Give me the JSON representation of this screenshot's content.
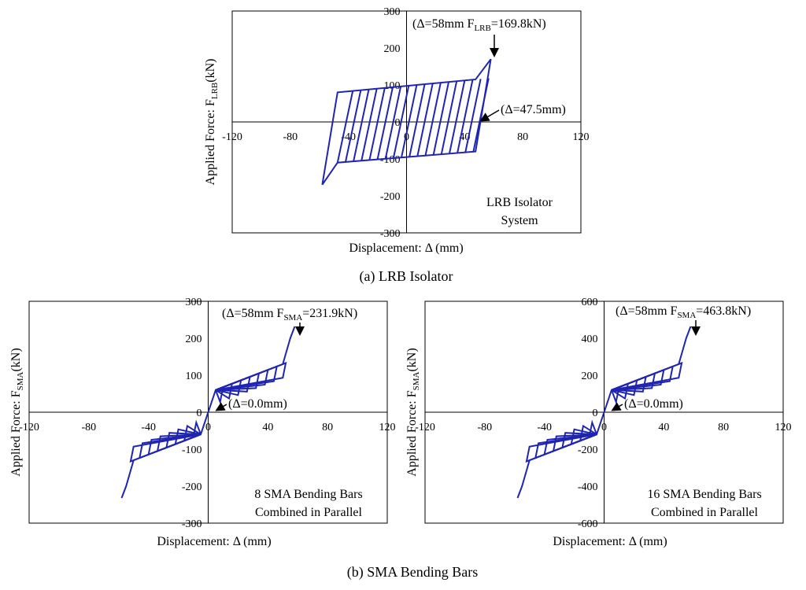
{
  "figure": {
    "caption_a": "(a) LRB Isolator",
    "caption_b": "(b) SMA Bending Bars",
    "line_color": "#1f25b0"
  },
  "chart_data": [
    {
      "id": "lrb",
      "type": "line",
      "title": "LRB Isolator",
      "panel_label": "LRB Isolator System",
      "panel_label_lines": [
        "LRB Isolator",
        "System"
      ],
      "xlabel": "Displacement: Δ (mm)",
      "ylabel_main": "Applied Force: F",
      "ylabel_sub": "LRB",
      "ylabel_end": "(kN)",
      "xlim": [
        -120,
        120
      ],
      "ylim": [
        -300,
        300
      ],
      "xticks": [
        -120,
        -80,
        -40,
        0,
        40,
        80,
        120
      ],
      "yticks": [
        -300,
        -200,
        -100,
        0,
        100,
        200,
        300
      ],
      "series": [
        {
          "name": "LRB hysteresis",
          "points": [
            [
              -58,
              -169.8
            ],
            [
              -47.5,
              -110
            ],
            [
              47.5,
              -80
            ],
            [
              58,
              169.8
            ],
            [
              47.5,
              115
            ],
            [
              -47.5,
              80
            ],
            [
              -58,
              -169.8
            ]
          ],
          "cycle_amplitudes": [
            -47.5,
            -42,
            -36.5,
            -31,
            -25.5,
            -20,
            -14.5,
            -9,
            -3.5,
            2,
            7.5,
            13,
            18.5,
            24,
            29.5,
            35,
            40.5,
            46
          ]
        }
      ],
      "annotations": [
        {
          "text": "(Δ=58mm F",
          "sub": "LRB",
          "tail": "=169.8kN)",
          "x": 58,
          "y": 169.8
        },
        {
          "text": "(Δ=47.5mm)",
          "x": 47.5,
          "y": 0
        }
      ]
    },
    {
      "id": "sma8",
      "type": "line",
      "title": "8 SMA Bending Bars",
      "panel_label": "8 SMA Bending Bars Combined in Parallel",
      "panel_label_lines": [
        "8 SMA Bending Bars",
        "Combined in Parallel"
      ],
      "xlabel": "Displacement: Δ (mm)",
      "ylabel_main": "Applied Force: F",
      "ylabel_sub": "SMA",
      "ylabel_end": "(kN)",
      "xlim": [
        -120,
        120
      ],
      "ylim": [
        -300,
        300
      ],
      "xticks": [
        -120,
        -80,
        -40,
        0,
        40,
        80,
        120
      ],
      "yticks": [
        -300,
        -200,
        -100,
        0,
        100,
        200,
        300
      ],
      "series": [
        {
          "name": "SMA flag-shaped hysteresis",
          "skeleton": [
            [
              -58,
              -231.9
            ],
            [
              -55,
              -200
            ],
            [
              -50,
              -130
            ],
            [
              -5,
              -60
            ],
            [
              5,
              60
            ],
            [
              50,
              130
            ],
            [
              55,
              200
            ],
            [
              58,
              231.9
            ]
          ],
          "loop_amplitudes": [
            10,
            16,
            22,
            28,
            34,
            40,
            46,
            52
          ]
        }
      ],
      "annotations": [
        {
          "text": "(Δ=58mm F",
          "sub": "SMA",
          "tail": "=231.9kN)",
          "x": 58,
          "y": 231.9
        },
        {
          "text": "(Δ=0.0mm)",
          "x": 0,
          "y": 0
        }
      ]
    },
    {
      "id": "sma16",
      "type": "line",
      "title": "16 SMA Bending Bars",
      "panel_label": "16 SMA Bending Bars Combined in Parallel",
      "panel_label_lines": [
        "16 SMA Bending Bars",
        "Combined in Parallel"
      ],
      "xlabel": "Displacement: Δ (mm)",
      "ylabel_main": "Applied Force: F",
      "ylabel_sub": "SMA",
      "ylabel_end": "(kN)",
      "xlim": [
        -120,
        120
      ],
      "ylim": [
        -600,
        600
      ],
      "xticks": [
        -120,
        -80,
        -40,
        0,
        40,
        80,
        120
      ],
      "yticks": [
        -600,
        -400,
        -200,
        0,
        200,
        400,
        600
      ],
      "series": [
        {
          "name": "SMA flag-shaped hysteresis",
          "skeleton": [
            [
              -58,
              -463.8
            ],
            [
              -55,
              -400
            ],
            [
              -50,
              -260
            ],
            [
              -5,
              -120
            ],
            [
              5,
              120
            ],
            [
              50,
              260
            ],
            [
              55,
              400
            ],
            [
              58,
              463.8
            ]
          ],
          "loop_amplitudes": [
            10,
            16,
            22,
            28,
            34,
            40,
            46,
            52
          ]
        }
      ],
      "annotations": [
        {
          "text": "(Δ=58mm F",
          "sub": "SMA",
          "tail": "=463.8kN)",
          "x": 58,
          "y": 463.8
        },
        {
          "text": "(Δ=0.0mm)",
          "x": 0,
          "y": 0
        }
      ]
    }
  ]
}
